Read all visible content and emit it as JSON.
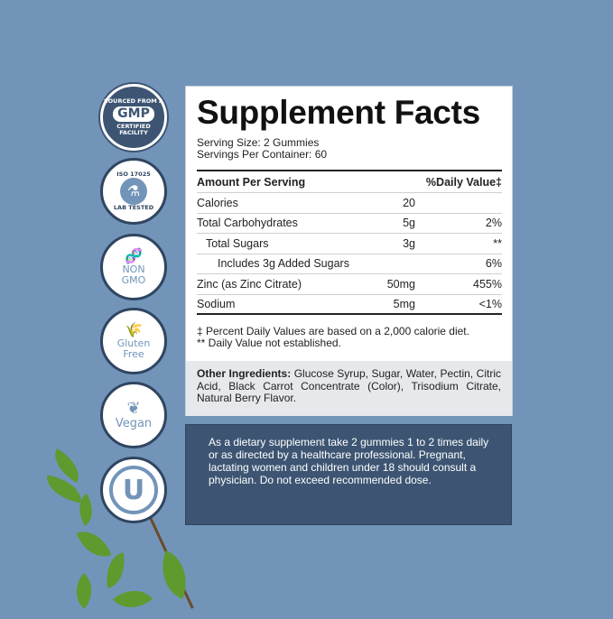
{
  "badges": [
    {
      "top": "SOURCED FROM A",
      "main": "GMP",
      "bottom": "CERTIFIED FACILITY"
    },
    {
      "top": "ISO 17025",
      "icon": "flask-icon",
      "bottom": "LAB TESTED"
    },
    {
      "icon": "dna-icon",
      "main": "NON\nGMO"
    },
    {
      "icon": "wheat-icon",
      "main": "Gluten\nFree"
    },
    {
      "icon": "leaves-icon",
      "main": "Vegan"
    },
    {
      "main": "U",
      "icon": "kosher-u-icon"
    }
  ],
  "facts": {
    "title": "Supplement Facts",
    "serving_size": "Serving Size: 2 Gummies",
    "servings_per_container": "Servings Per Container: 60",
    "header": {
      "amount": "Amount Per Serving",
      "dv": "%Daily Value‡"
    },
    "rows": [
      {
        "name": "Calories",
        "amount": "20",
        "dv": ""
      },
      {
        "name": "Total Carbohydrates",
        "amount": "5g",
        "dv": "2%"
      },
      {
        "name": "Total Sugars",
        "amount": "3g",
        "dv": "**"
      },
      {
        "name": "Includes 3g Added Sugars",
        "amount": "",
        "dv": "6%"
      },
      {
        "name": "Zinc (as Zinc Citrate)",
        "amount": "50mg",
        "dv": "455%"
      },
      {
        "name": "Sodium",
        "amount": "5mg",
        "dv": "<1%"
      }
    ],
    "footnote1": "‡ Percent Daily Values are based on a 2,000 calorie diet.",
    "footnote2": "** Daily Value not established.",
    "other_label": "Other Ingredients:",
    "other_text": " Glucose Syrup, Sugar, Water, Pectin, Citric Acid, Black Carrot Concentrate (Color), Trisodium Citrate, Natural Berry Flavor."
  },
  "directions": "As a dietary supplement take 2 gummies 1 to 2 times daily or as directed by a healthcare professional. Pregnant, lactating women and children under 18 should consult a physician. Do not exceed recommended dose.",
  "colors": {
    "background": "#7294b9",
    "panel_dark": "#3d5573",
    "accent": "#2f4560"
  }
}
